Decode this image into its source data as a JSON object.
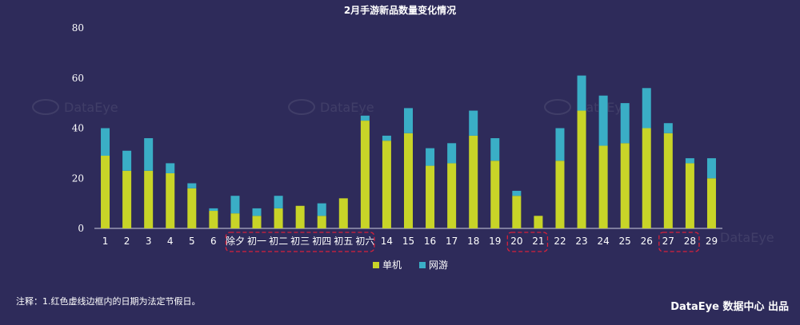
{
  "title": "2月手游新品数量变化情况",
  "watermark": "DataEye",
  "footnote": "注释：1.红色虚线边框内的日期为法定节假日。",
  "brand": "DataEye 数据中心 出品",
  "colors": {
    "background": "#2e2b5a",
    "standalone": "#c8d428",
    "online": "#3aaec6",
    "holiday_box": "#d8213a"
  },
  "chart_data": {
    "type": "bar",
    "stacked": true,
    "categories": [
      "1",
      "2",
      "3",
      "4",
      "5",
      "6",
      "除夕",
      "初一",
      "初二",
      "初三",
      "初四",
      "初五",
      "初六",
      "14",
      "15",
      "16",
      "17",
      "18",
      "19",
      "20",
      "21",
      "22",
      "23",
      "24",
      "25",
      "26",
      "27",
      "28",
      "29"
    ],
    "series": [
      {
        "name": "单机",
        "color": "#c8d428",
        "values": [
          29,
          23,
          23,
          22,
          16,
          7,
          6,
          5,
          8,
          9,
          5,
          12,
          43,
          35,
          38,
          25,
          26,
          37,
          27,
          13,
          5,
          27,
          47,
          33,
          34,
          40,
          38,
          26,
          20
        ]
      },
      {
        "name": "网游",
        "color": "#3aaec6",
        "values": [
          11,
          8,
          13,
          4,
          2,
          1,
          7,
          3,
          5,
          0,
          5,
          0,
          2,
          2,
          10,
          7,
          8,
          10,
          9,
          2,
          0,
          13,
          14,
          20,
          16,
          16,
          4,
          2,
          8
        ]
      }
    ],
    "ylim": [
      0,
      80
    ],
    "yticks": [
      0,
      20,
      40,
      60,
      80
    ],
    "legend_position": "bottom",
    "grid": false,
    "holiday_groups": [
      [
        "除夕",
        "初一",
        "初二",
        "初三",
        "初四",
        "初五",
        "初六"
      ],
      [
        "20",
        "21"
      ],
      [
        "27",
        "28"
      ]
    ]
  }
}
